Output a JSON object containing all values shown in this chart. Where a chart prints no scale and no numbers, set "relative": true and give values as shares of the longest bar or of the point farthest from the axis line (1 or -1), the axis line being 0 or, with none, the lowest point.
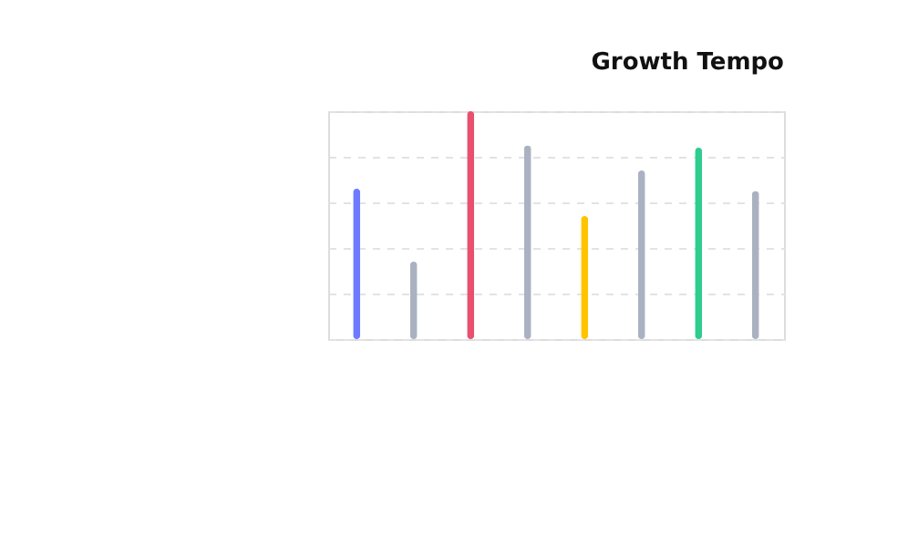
{
  "chart_data": {
    "type": "bar",
    "title": "Growth Tempo",
    "relative": true,
    "grid": "y",
    "categories": [
      null,
      null,
      null,
      null,
      null,
      null,
      null,
      null
    ],
    "values": [
      0.66,
      0.34,
      1,
      0.85,
      0.54,
      0.74,
      0.84,
      0.65
    ],
    "colors": [
      "#6e7bff",
      "#aab2c2",
      "#e8506e",
      "#aab2c2",
      "#ffc400",
      "#aab2c2",
      "#2ecc8f",
      "#aab2c2"
    ]
  }
}
